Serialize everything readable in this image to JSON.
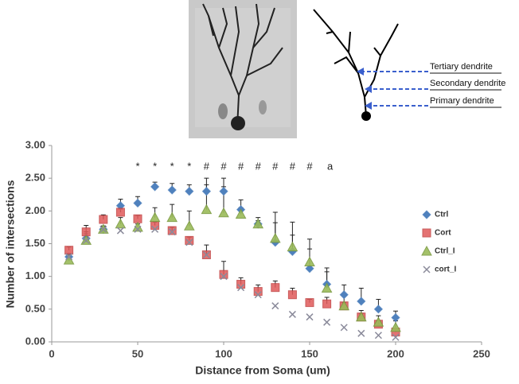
{
  "figure": {
    "labels": [
      "Tertiary dendrite",
      "Secondary dendrite",
      "Primary dendrite"
    ]
  },
  "chart_data": {
    "type": "scatter",
    "x_label": "Distance from Soma (um)",
    "y_label": "Number of intersections",
    "x": [
      10,
      20,
      30,
      40,
      50,
      60,
      70,
      80,
      90,
      100,
      110,
      120,
      130,
      140,
      150,
      160,
      170,
      180,
      190,
      200
    ],
    "series": [
      {
        "name": "Ctrl",
        "color": "#4f81bd",
        "marker": "diamond",
        "values": [
          1.3,
          1.58,
          1.72,
          2.08,
          2.12,
          2.37,
          2.32,
          2.3,
          2.3,
          2.3,
          2.02,
          1.8,
          1.52,
          1.38,
          1.12,
          0.88,
          0.72,
          0.62,
          0.5,
          0.37
        ],
        "errors": [
          0.05,
          0.1,
          0.05,
          0.1,
          0.1,
          0.07,
          0.1,
          0.1,
          0.2,
          0.2,
          0.15,
          0.1,
          0.3,
          0.25,
          0.3,
          0.25,
          0.15,
          0.2,
          0.15,
          0.1
        ]
      },
      {
        "name": "Cort",
        "color": "#e05a5a",
        "marker": "square",
        "values": [
          1.4,
          1.68,
          1.87,
          1.98,
          1.88,
          1.78,
          1.7,
          1.55,
          1.33,
          1.03,
          0.88,
          0.77,
          0.83,
          0.72,
          0.6,
          0.58,
          0.55,
          0.38,
          0.27,
          0.15
        ],
        "errors": [
          0.05,
          0.1,
          0.07,
          0.05,
          0.05,
          0.05,
          0.05,
          0.05,
          0.15,
          0.2,
          0.1,
          0.1,
          0.1,
          0.1,
          0.05,
          0.1,
          0.05,
          0.05,
          0.05,
          0.05
        ]
      },
      {
        "name": "Ctrl_I",
        "color": "#9bbb59",
        "marker": "triangle",
        "values": [
          1.25,
          1.55,
          1.72,
          1.8,
          1.75,
          1.9,
          1.9,
          1.77,
          2.02,
          1.97,
          1.95,
          1.8,
          1.58,
          1.45,
          1.22,
          0.82,
          0.55,
          0.38,
          0.3,
          0.22
        ],
        "errors": [
          0.05,
          0.1,
          0.05,
          0.1,
          0.05,
          0.15,
          0.2,
          0.23,
          0.38,
          0.4,
          0.1,
          0.05,
          0.4,
          0.38,
          0.35,
          0.25,
          0.15,
          0.1,
          0.1,
          0.1
        ]
      },
      {
        "name": "cort_I",
        "color": "#8a8a9a",
        "marker": "x",
        "values": [
          1.3,
          1.55,
          1.72,
          1.7,
          1.72,
          1.72,
          1.68,
          1.52,
          1.33,
          1.0,
          0.83,
          0.72,
          0.55,
          0.42,
          0.38,
          0.3,
          0.22,
          0.13,
          0.1,
          0.07
        ]
      }
    ],
    "annotations": [
      {
        "text": "*",
        "x": 50
      },
      {
        "text": "*",
        "x": 60
      },
      {
        "text": "*",
        "x": 70
      },
      {
        "text": "*",
        "x": 80
      },
      {
        "text": "#",
        "x": 90
      },
      {
        "text": "#",
        "x": 100
      },
      {
        "text": "#",
        "x": 110
      },
      {
        "text": "#",
        "x": 120
      },
      {
        "text": "#",
        "x": 130
      },
      {
        "text": "#",
        "x": 140
      },
      {
        "text": "#",
        "x": 150
      },
      {
        "text": "a",
        "x": 160
      }
    ],
    "xlim": [
      0,
      250
    ],
    "xticks": [
      0,
      50,
      100,
      150,
      200,
      250
    ],
    "ylim": [
      0,
      3
    ],
    "yticks": [
      {
        "value": 0,
        "label": "0.00"
      },
      {
        "value": 0.5,
        "label": "0.50"
      },
      {
        "value": 1,
        "label": "1.00"
      },
      {
        "value": 1.5,
        "label": "1.50"
      },
      {
        "value": 2,
        "label": "2.00"
      },
      {
        "value": 2.5,
        "label": "2.50"
      },
      {
        "value": 3,
        "label": "3.00"
      }
    ],
    "legend": "right",
    "grid": false
  }
}
